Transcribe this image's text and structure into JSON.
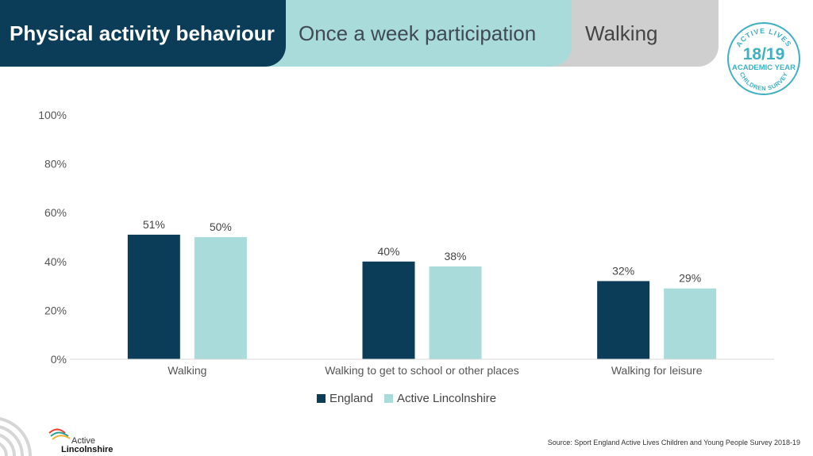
{
  "header": {
    "tab_primary": "Physical activity behaviour",
    "tab_secondary": "Once a week participation",
    "tab_tertiary": "Walking"
  },
  "badge": {
    "top_text": "ACTIVE LIVES",
    "year": "18/19",
    "middle_text": "ACADEMIC YEAR",
    "bottom_text": "CHILDREN SURVEY"
  },
  "colors": {
    "england": "#0b3d58",
    "active_lincolnshire": "#aadbdb",
    "header_dark": "#0b3d58",
    "header_light": "#aadbdb",
    "header_grey": "#cfcfcf"
  },
  "chart_data": {
    "type": "bar",
    "categories": [
      "Walking",
      "Walking to get to school or other places",
      "Walking for leisure"
    ],
    "series": [
      {
        "name": "England",
        "values": [
          51,
          40,
          32
        ],
        "labels": [
          "51%",
          "40%",
          "32%"
        ]
      },
      {
        "name": "Active Lincolnshire",
        "values": [
          50,
          38,
          29
        ],
        "labels": [
          "50%",
          "38%",
          "29%"
        ]
      }
    ],
    "ylim": [
      0,
      100
    ],
    "yticks": [
      "0%",
      "20%",
      "40%",
      "60%",
      "80%",
      "100%"
    ],
    "grid": false,
    "legend_position": "bottom"
  },
  "legend": {
    "england": "England",
    "active_lincolnshire": "Active Lincolnshire"
  },
  "footer": {
    "source": "Source: Sport England Active Lives Children and Young People Survey 2018-19",
    "brand_line1": "Active",
    "brand_line2": "Lincolnshire"
  }
}
